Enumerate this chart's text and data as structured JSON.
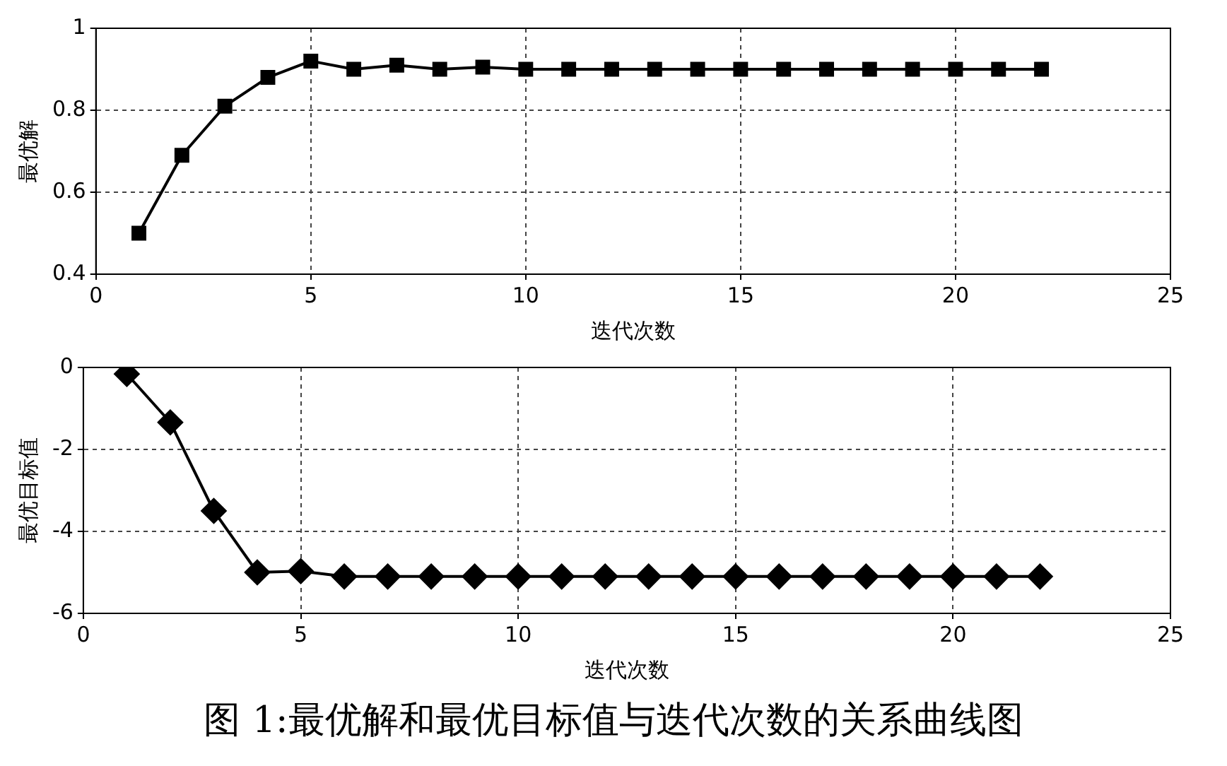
{
  "chart_data": [
    {
      "type": "line",
      "x": [
        1,
        2,
        3,
        4,
        5,
        6,
        7,
        8,
        9,
        10,
        11,
        12,
        13,
        14,
        15,
        16,
        17,
        18,
        19,
        20,
        21,
        22
      ],
      "series": [
        {
          "color": "#000000",
          "values": [
            0.5,
            0.69,
            0.81,
            0.88,
            0.92,
            0.9,
            0.91,
            0.9,
            0.905,
            0.9,
            0.9,
            0.9,
            0.9,
            0.9,
            0.9,
            0.9,
            0.9,
            0.9,
            0.9,
            0.9,
            0.9,
            0.9
          ]
        }
      ],
      "xlabel": "迭代次数",
      "ylabel": "最优解",
      "xlim": [
        0,
        25
      ],
      "xticks": [
        0,
        5,
        10,
        15,
        20,
        25
      ],
      "ylim": [
        0.4,
        1
      ],
      "yticks": [
        0.4,
        0.6,
        0.8,
        1
      ],
      "grid": true,
      "marker": "square",
      "line_style": "solid"
    },
    {
      "type": "line",
      "x": [
        1,
        2,
        3,
        4,
        5,
        6,
        7,
        8,
        9,
        10,
        11,
        12,
        13,
        14,
        15,
        16,
        17,
        18,
        19,
        20,
        21,
        22
      ],
      "series": [
        {
          "color": "#000000",
          "values": [
            -0.16,
            -1.34,
            -3.5,
            -5,
            -4.97,
            -5.1,
            -5.1,
            -5.1,
            -5.1,
            -5.1,
            -5.1,
            -5.1,
            -5.1,
            -5.1,
            -5.1,
            -5.1,
            -5.1,
            -5.1,
            -5.1,
            -5.1,
            -5.1,
            -5.1
          ]
        }
      ],
      "xlabel": "迭代次数",
      "ylabel": "最优目标值",
      "xlim": [
        0,
        25
      ],
      "xticks": [
        0,
        5,
        10,
        15,
        20,
        25
      ],
      "ylim": [
        -6,
        0
      ],
      "yticks": [
        -6,
        -4,
        -2,
        0
      ],
      "grid": true,
      "marker": "diamond",
      "line_style": "solid",
      "annotations": [
        "图 1:最优解和最优目标值与迭代次数的关系曲线图"
      ]
    }
  ]
}
